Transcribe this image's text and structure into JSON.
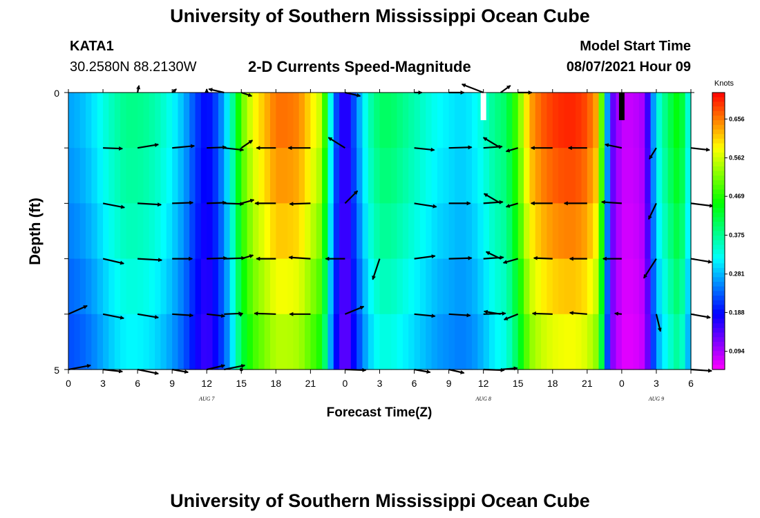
{
  "title_top": "University of Southern Mississippi Ocean Cube",
  "title_bottom": "University of Southern Mississippi Ocean Cube",
  "station": {
    "name": "KATA1",
    "location": "30.2580N  88.2130W"
  },
  "chart_title": "2-D Currents Speed-Magnitude",
  "model": {
    "label": "Model Start Time",
    "value": "08/07/2021 Hour 09"
  },
  "chart_data": {
    "type": "heatmap",
    "title": "2-D Currents Speed-Magnitude",
    "xlabel": "Forecast Time(Z)",
    "ylabel": "Depth (ft)",
    "x_range": [
      0,
      54
    ],
    "ylim": [
      0,
      5
    ],
    "y_tick_labels": [
      "0",
      "5"
    ],
    "x_tick_labels": [
      "0",
      "3",
      "6",
      "9",
      "12",
      "15",
      "18",
      "21",
      "0",
      "3",
      "6",
      "9",
      "12",
      "15",
      "18",
      "21",
      "0",
      "3",
      "6"
    ],
    "date_labels": [
      {
        "text": "AUG  7",
        "x": 12
      },
      {
        "text": "AUG  8",
        "x": 36
      },
      {
        "text": "AUG  9",
        "x": 51
      }
    ],
    "colorbar": {
      "unit": "Knots",
      "ticks": [
        "0.656",
        "0.562",
        "0.469",
        "0.375",
        "0.281",
        "0.188",
        "0.094"
      ],
      "range": [
        0.05,
        0.72
      ]
    },
    "profile_hours": [
      0,
      1,
      2,
      3,
      4,
      5,
      6,
      7,
      8,
      9,
      10,
      11,
      12,
      13,
      14,
      15,
      16,
      17,
      18,
      19,
      20,
      21,
      22,
      23,
      24,
      25,
      26,
      27,
      28,
      29,
      30,
      31,
      32,
      33,
      34,
      35,
      36,
      37,
      38,
      39,
      40,
      41,
      42,
      43,
      44,
      45,
      46,
      47,
      48,
      49,
      50,
      51,
      52,
      53,
      54
    ],
    "speed_profile": [
      0.27,
      0.28,
      0.3,
      0.33,
      0.36,
      0.38,
      0.38,
      0.37,
      0.35,
      0.32,
      0.28,
      0.22,
      0.18,
      0.23,
      0.33,
      0.5,
      0.58,
      0.62,
      0.66,
      0.66,
      0.65,
      0.6,
      0.55,
      0.25,
      0.14,
      0.25,
      0.35,
      0.4,
      0.4,
      0.38,
      0.36,
      0.34,
      0.32,
      0.31,
      0.3,
      0.31,
      0.34,
      0.38,
      0.4,
      0.5,
      0.63,
      0.67,
      0.69,
      0.7,
      0.7,
      0.68,
      0.62,
      0.15,
      0.08,
      0.08,
      0.1,
      0.32,
      0.4,
      0.46,
      0.3
    ],
    "depth_factors": [
      1.0,
      0.97,
      0.93,
      0.88,
      0.83
    ],
    "vector_times": [
      0,
      3,
      6,
      9,
      12,
      13.5,
      15,
      18,
      21,
      24,
      27,
      30,
      33,
      36,
      37.5,
      39,
      42,
      45,
      48,
      51,
      54
    ],
    "vector_rows": [
      [
        null,
        null,
        [
          2,
          -10
        ],
        [
          6,
          -5
        ],
        [
          0,
          -5
        ],
        [
          -22,
          -5
        ],
        [
          15,
          5
        ],
        null,
        null,
        [
          22,
          5
        ],
        null,
        [
          11,
          0
        ],
        [
          22,
          0
        ],
        [
          -31,
          -12
        ],
        [
          14,
          -10
        ],
        [
          20,
          0
        ],
        null,
        null,
        null,
        null,
        null
      ],
      [
        null,
        [
          28,
          1
        ],
        [
          30,
          -5
        ],
        [
          32,
          -3
        ],
        [
          28,
          -1
        ],
        [
          28,
          3
        ],
        [
          16,
          -11
        ],
        [
          -28,
          0
        ],
        [
          -32,
          0
        ],
        [
          -24,
          -15
        ],
        null,
        [
          29,
          3
        ],
        [
          33,
          -1
        ],
        [
          27,
          -2
        ],
        [
          -25,
          -15
        ],
        [
          -17,
          5
        ],
        [
          -31,
          0
        ],
        [
          -27,
          0
        ],
        [
          -24,
          -5
        ],
        [
          -10,
          16
        ],
        [
          27,
          3
        ]
      ],
      [
        null,
        [
          31,
          6
        ],
        [
          34,
          2
        ],
        [
          30,
          -1
        ],
        [
          28,
          -1
        ],
        [
          28,
          1
        ],
        [
          18,
          -5
        ],
        [
          -30,
          0
        ],
        [
          -30,
          1
        ],
        [
          18,
          -18
        ],
        null,
        [
          32,
          5
        ],
        [
          31,
          0
        ],
        [
          28,
          -2
        ],
        [
          -24,
          -14
        ],
        [
          -17,
          5
        ],
        [
          -31,
          0
        ],
        [
          -33,
          0
        ],
        [
          -29,
          -2
        ],
        [
          -11,
          23
        ],
        [
          32,
          4
        ]
      ],
      [
        null,
        [
          30,
          7
        ],
        [
          35,
          2
        ],
        [
          29,
          0
        ],
        [
          29,
          -1
        ],
        [
          30,
          -1
        ],
        [
          17,
          -5
        ],
        [
          -28,
          0
        ],
        [
          -31,
          -2
        ],
        [
          -28,
          0
        ],
        [
          -10,
          30
        ],
        [
          30,
          -4
        ],
        [
          33,
          -1
        ],
        [
          29,
          -2
        ],
        [
          -21,
          -10
        ],
        [
          -21,
          6
        ],
        [
          -27,
          -1
        ],
        [
          -25,
          0
        ],
        [
          -27,
          0
        ],
        [
          -18,
          28
        ],
        [
          30,
          5
        ]
      ],
      [
        [
          27,
          -12
        ],
        [
          30,
          6
        ],
        [
          30,
          5
        ],
        [
          30,
          2
        ],
        [
          26,
          3
        ],
        [
          26,
          -1
        ],
        [
          2,
          -1
        ],
        [
          -31,
          -1
        ],
        [
          -30,
          0
        ],
        [
          27,
          -11
        ],
        null,
        [
          30,
          3
        ],
        [
          31,
          2
        ],
        [
          32,
          -1
        ],
        [
          -24,
          -4
        ],
        [
          -20,
          8
        ],
        [
          -29,
          -1
        ],
        [
          -25,
          -2
        ],
        [
          -10,
          -1
        ],
        [
          6,
          25
        ],
        [
          28,
          5
        ]
      ],
      [
        [
          32,
          -6
        ],
        [
          28,
          3
        ],
        [
          30,
          6
        ],
        [
          23,
          4
        ],
        [
          26,
          -6
        ],
        [
          30,
          -6
        ],
        [
          0,
          0
        ],
        null,
        null,
        [
          30,
          1
        ],
        null,
        [
          23,
          4
        ],
        [
          22,
          5
        ],
        [
          30,
          1
        ],
        [
          24,
          -2
        ],
        null,
        null,
        null,
        null,
        null,
        [
          30,
          2
        ]
      ]
    ],
    "shallow_bars": [
      {
        "x": 36,
        "color": "#ffffff"
      },
      {
        "x": 48,
        "color": "#000000"
      }
    ]
  }
}
